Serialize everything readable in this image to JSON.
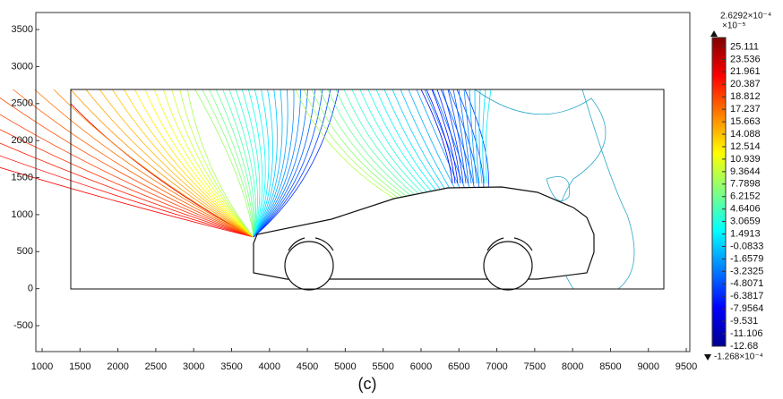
{
  "chart_data": {
    "type": "contour",
    "caption": "(c)",
    "xlim": [
      917,
      9547
    ],
    "ylim": [
      -850,
      3730
    ],
    "xticks": [
      1000,
      1500,
      2000,
      2500,
      3000,
      3500,
      4000,
      4500,
      5000,
      5500,
      6000,
      6500,
      7000,
      7500,
      8000,
      8500,
      9000,
      9500
    ],
    "yticks": [
      -500,
      0,
      500,
      1000,
      1500,
      2000,
      2500,
      3000,
      3500
    ],
    "colorbar": {
      "clim": [
        -12.68,
        26.292
      ],
      "ticks": [
        25.111,
        23.536,
        21.961,
        20.387,
        18.812,
        17.237,
        15.663,
        14.088,
        12.514,
        10.939,
        9.3644,
        7.7898,
        6.2152,
        4.6406,
        3.0659,
        1.4913,
        -0.0833,
        -1.6579,
        -3.2325,
        -4.8071,
        -6.3817,
        -7.9564,
        -9.531,
        -11.106,
        -12.68
      ],
      "max_label": "2.6292×10⁻⁴",
      "scale_label": "×10⁻⁵",
      "min_label": "-1.268×10⁻⁴"
    }
  }
}
